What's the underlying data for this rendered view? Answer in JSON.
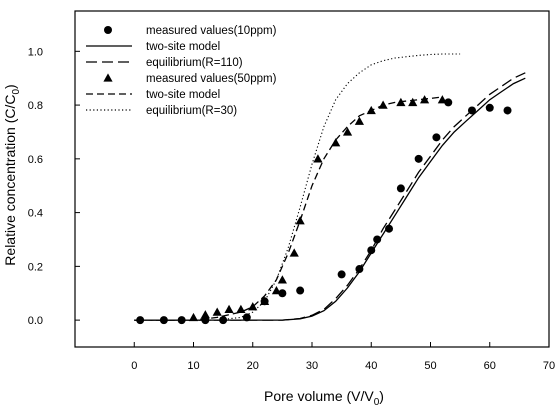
{
  "chart_data": {
    "type": "scatter",
    "title": "",
    "xlabel": "Pore volume (V/V",
    "xlabel_sub": "0",
    "xlabel_end": ")",
    "ylabel": "Relative concentration (C/C",
    "ylabel_sub": "0",
    "ylabel_end": ")",
    "xlim": [
      -10,
      70
    ],
    "ylim": [
      -0.1,
      1.15
    ],
    "xticks": [
      "0",
      "10",
      "20",
      "30",
      "40",
      "50",
      "60",
      "70"
    ],
    "yticks": [
      "0.0",
      "0.2",
      "0.4",
      "0.6",
      "0.8",
      "1.0"
    ],
    "grid": false,
    "legend_position": "top-left",
    "series": [
      {
        "name": "measured values(10ppm)",
        "kind": "points",
        "marker": "circle",
        "x": [
          1,
          5,
          8,
          12,
          15,
          19,
          22,
          25,
          28,
          35,
          38,
          40,
          41,
          43,
          45,
          48,
          51,
          53,
          57,
          60,
          63
        ],
        "y": [
          0.0,
          0.0,
          0.0,
          0.0,
          0.0,
          0.01,
          0.07,
          0.1,
          0.11,
          0.17,
          0.19,
          0.26,
          0.3,
          0.34,
          0.49,
          0.6,
          0.68,
          0.81,
          0.78,
          0.79,
          0.78
        ]
      },
      {
        "name": "two-site model",
        "kind": "line",
        "dash": "solid",
        "x": [
          0,
          20,
          25,
          28,
          30,
          32,
          34,
          36,
          38,
          40,
          42,
          44,
          46,
          48,
          50,
          52,
          54,
          56,
          58,
          60,
          62,
          64,
          66
        ],
        "y": [
          0.0,
          0.0,
          0.0,
          0.005,
          0.015,
          0.035,
          0.07,
          0.12,
          0.18,
          0.25,
          0.32,
          0.39,
          0.46,
          0.53,
          0.59,
          0.65,
          0.7,
          0.74,
          0.78,
          0.82,
          0.85,
          0.88,
          0.9
        ]
      },
      {
        "name": "equilibrium(R=110)",
        "kind": "line",
        "dash": "long",
        "x": [
          0,
          20,
          25,
          28,
          30,
          32,
          34,
          36,
          38,
          40,
          42,
          44,
          46,
          48,
          50,
          52,
          54,
          56,
          58,
          60,
          62,
          64,
          66
        ],
        "y": [
          0.0,
          0.0,
          0.0,
          0.006,
          0.018,
          0.04,
          0.08,
          0.13,
          0.19,
          0.26,
          0.34,
          0.41,
          0.48,
          0.55,
          0.61,
          0.67,
          0.72,
          0.76,
          0.8,
          0.84,
          0.87,
          0.9,
          0.92
        ]
      },
      {
        "name": "measured values(50ppm)",
        "kind": "points",
        "marker": "triangle",
        "x": [
          10,
          12,
          14,
          16,
          18,
          20,
          22,
          24,
          25,
          27,
          28,
          31,
          34,
          36,
          38,
          40,
          42,
          45,
          47,
          49,
          52
        ],
        "y": [
          0.01,
          0.02,
          0.03,
          0.04,
          0.04,
          0.05,
          0.07,
          0.11,
          0.15,
          0.25,
          0.37,
          0.6,
          0.66,
          0.7,
          0.74,
          0.78,
          0.8,
          0.81,
          0.81,
          0.82,
          0.82
        ]
      },
      {
        "name": "two-site model",
        "kind": "line",
        "dash": "medium",
        "x": [
          0,
          10,
          14,
          18,
          20,
          22,
          24,
          26,
          28,
          30,
          32,
          34,
          36,
          38,
          40,
          42,
          44,
          46,
          48,
          50,
          52
        ],
        "y": [
          0.0,
          0.0,
          0.01,
          0.03,
          0.05,
          0.09,
          0.15,
          0.25,
          0.37,
          0.5,
          0.6,
          0.67,
          0.72,
          0.76,
          0.78,
          0.8,
          0.81,
          0.815,
          0.82,
          0.825,
          0.83
        ]
      },
      {
        "name": "equilibrium(R=30)",
        "kind": "line",
        "dash": "dotted",
        "x": [
          0,
          14,
          18,
          20,
          22,
          24,
          26,
          28,
          30,
          32,
          34,
          36,
          38,
          40,
          42,
          44,
          46,
          48,
          50,
          52,
          55
        ],
        "y": [
          0.0,
          0.0,
          0.01,
          0.03,
          0.07,
          0.15,
          0.27,
          0.42,
          0.58,
          0.72,
          0.82,
          0.88,
          0.92,
          0.95,
          0.965,
          0.975,
          0.98,
          0.985,
          0.988,
          0.99,
          0.99
        ]
      }
    ]
  }
}
